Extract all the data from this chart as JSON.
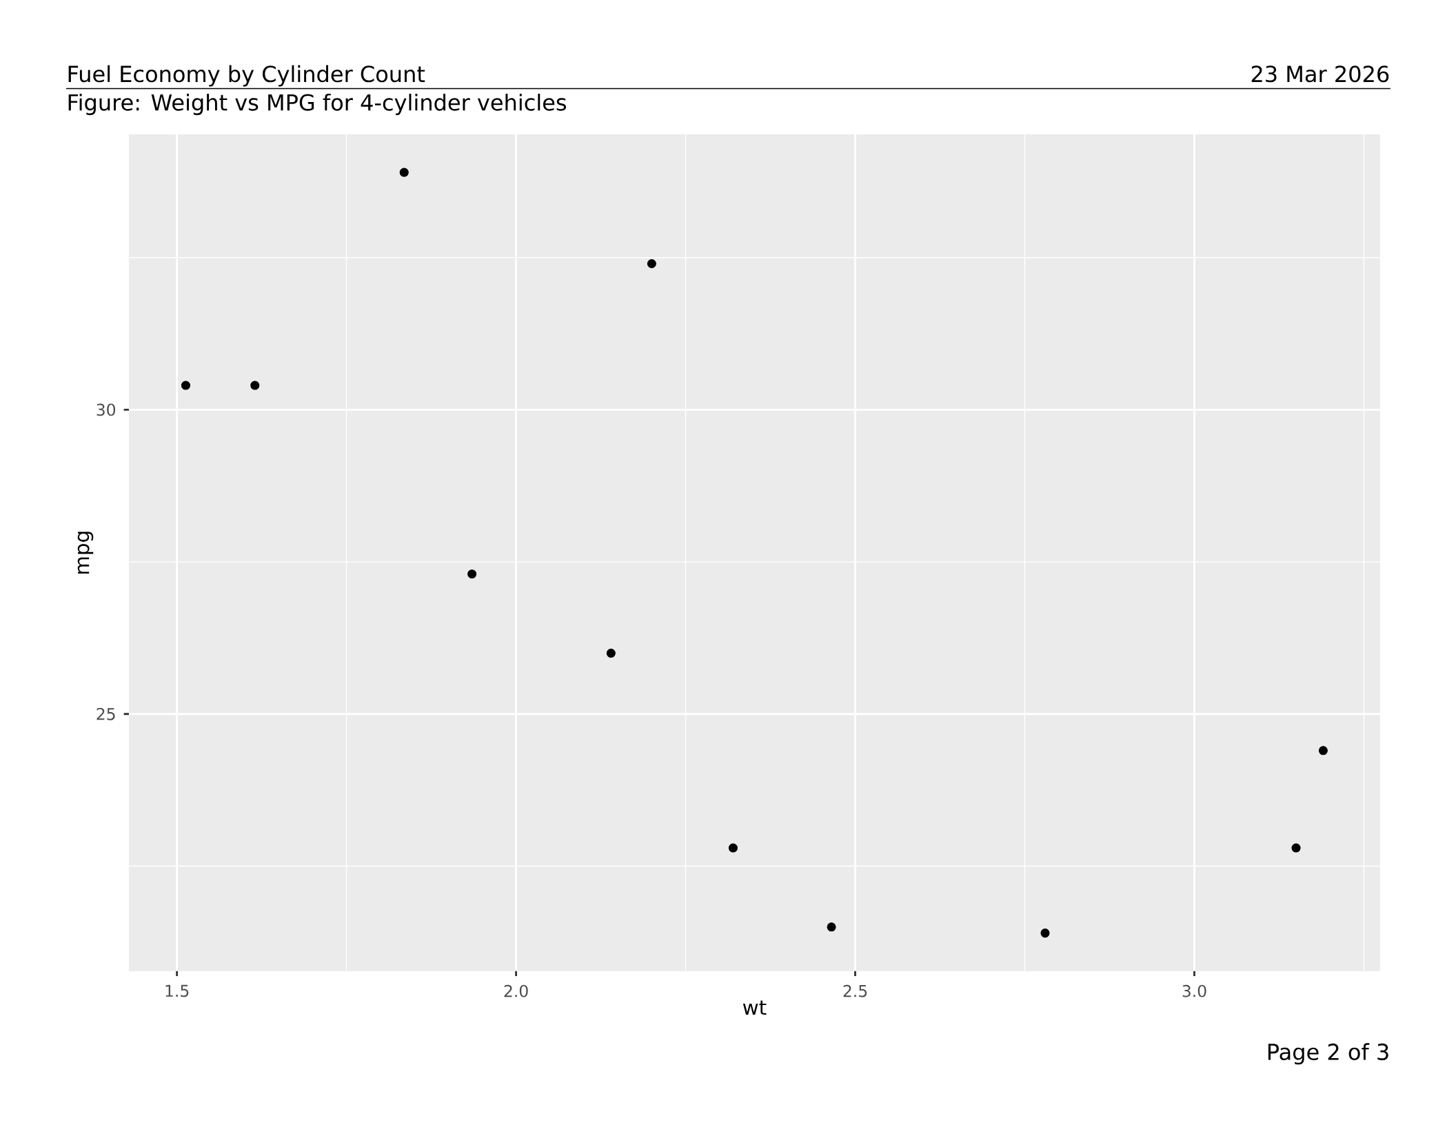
{
  "chart_data": {
    "type": "scatter",
    "title": "Fuel Economy by Cylinder Count",
    "subtitle": "Figure: Weight vs MPG for 4-cylinder vehicles",
    "xlabel": "wt",
    "ylabel": "mpg",
    "annotations": [
      "23 Mar 2026",
      "Page 2 of 3"
    ],
    "x": [
      2.32,
      3.19,
      3.15,
      2.2,
      1.615,
      1.835,
      2.465,
      1.935,
      2.14,
      1.513,
      2.78
    ],
    "values": [
      22.8,
      24.4,
      22.8,
      32.4,
      30.4,
      33.9,
      21.5,
      27.3,
      26.0,
      30.4,
      21.4
    ],
    "color": "#000000",
    "marker": "circle",
    "xlim": [
      1.42915,
      3.27385
    ],
    "ylim": [
      20.775,
      34.525
    ],
    "xticks": [
      {
        "value": 1.5,
        "label": "1.5"
      },
      {
        "value": 2.0,
        "label": "2.0"
      },
      {
        "value": 2.5,
        "label": "2.5"
      },
      {
        "value": 3.0,
        "label": "3.0"
      }
    ],
    "yticks": [
      25,
      30
    ],
    "grid": true
  }
}
